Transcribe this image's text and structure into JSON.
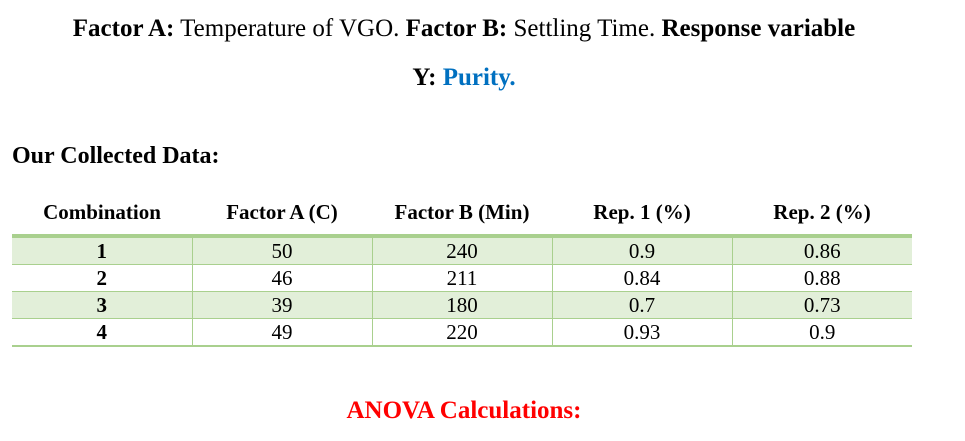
{
  "title": {
    "factor_a_label": "Factor A:",
    "factor_a_text": " Temperature of VGO. ",
    "factor_b_label": "Factor B:",
    "factor_b_text": " Settling Time. ",
    "response_label": "Response variable",
    "response_y_label": "Y: ",
    "response_value": "Purity."
  },
  "section_heading": "Our Collected Data:",
  "table": {
    "headers": [
      "Combination",
      "Factor A (C)",
      "Factor B (Min)",
      "Rep. 1 (%)",
      "Rep. 2 (%)"
    ],
    "rows": [
      [
        "1",
        "50",
        "240",
        "0.9",
        "0.86"
      ],
      [
        "2",
        "46",
        "211",
        "0.84",
        "0.88"
      ],
      [
        "3",
        "39",
        "180",
        "0.7",
        "0.73"
      ],
      [
        "4",
        "49",
        "220",
        "0.93",
        "0.9"
      ]
    ]
  },
  "footer_heading": "ANOVA Calculations:",
  "colors": {
    "accent_blue": "#0070C0",
    "accent_red": "#FF0000",
    "row_band_green": "#E2EFD9",
    "table_border_green": "#A9D08E"
  }
}
